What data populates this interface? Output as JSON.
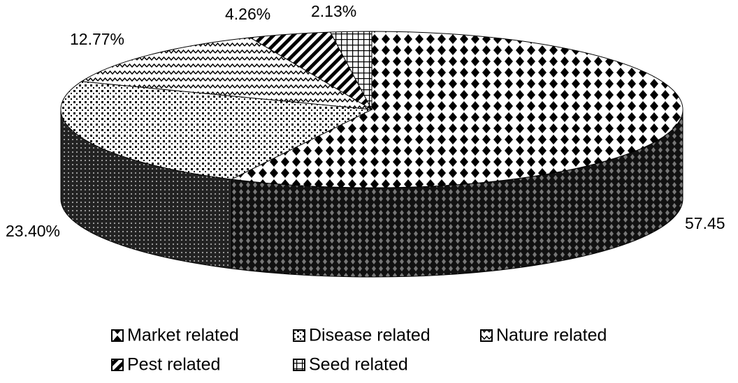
{
  "chart_data": {
    "type": "pie3d",
    "categories": [
      "Market related",
      "Disease related",
      "Nature related",
      "Pest related",
      "Seed related"
    ],
    "values": [
      57.45,
      23.4,
      12.77,
      4.26,
      2.13
    ],
    "value_labels": [
      "57.45",
      "23.40%",
      "12.77%",
      "4.26%",
      "2.13%"
    ],
    "legend": "bottom"
  }
}
